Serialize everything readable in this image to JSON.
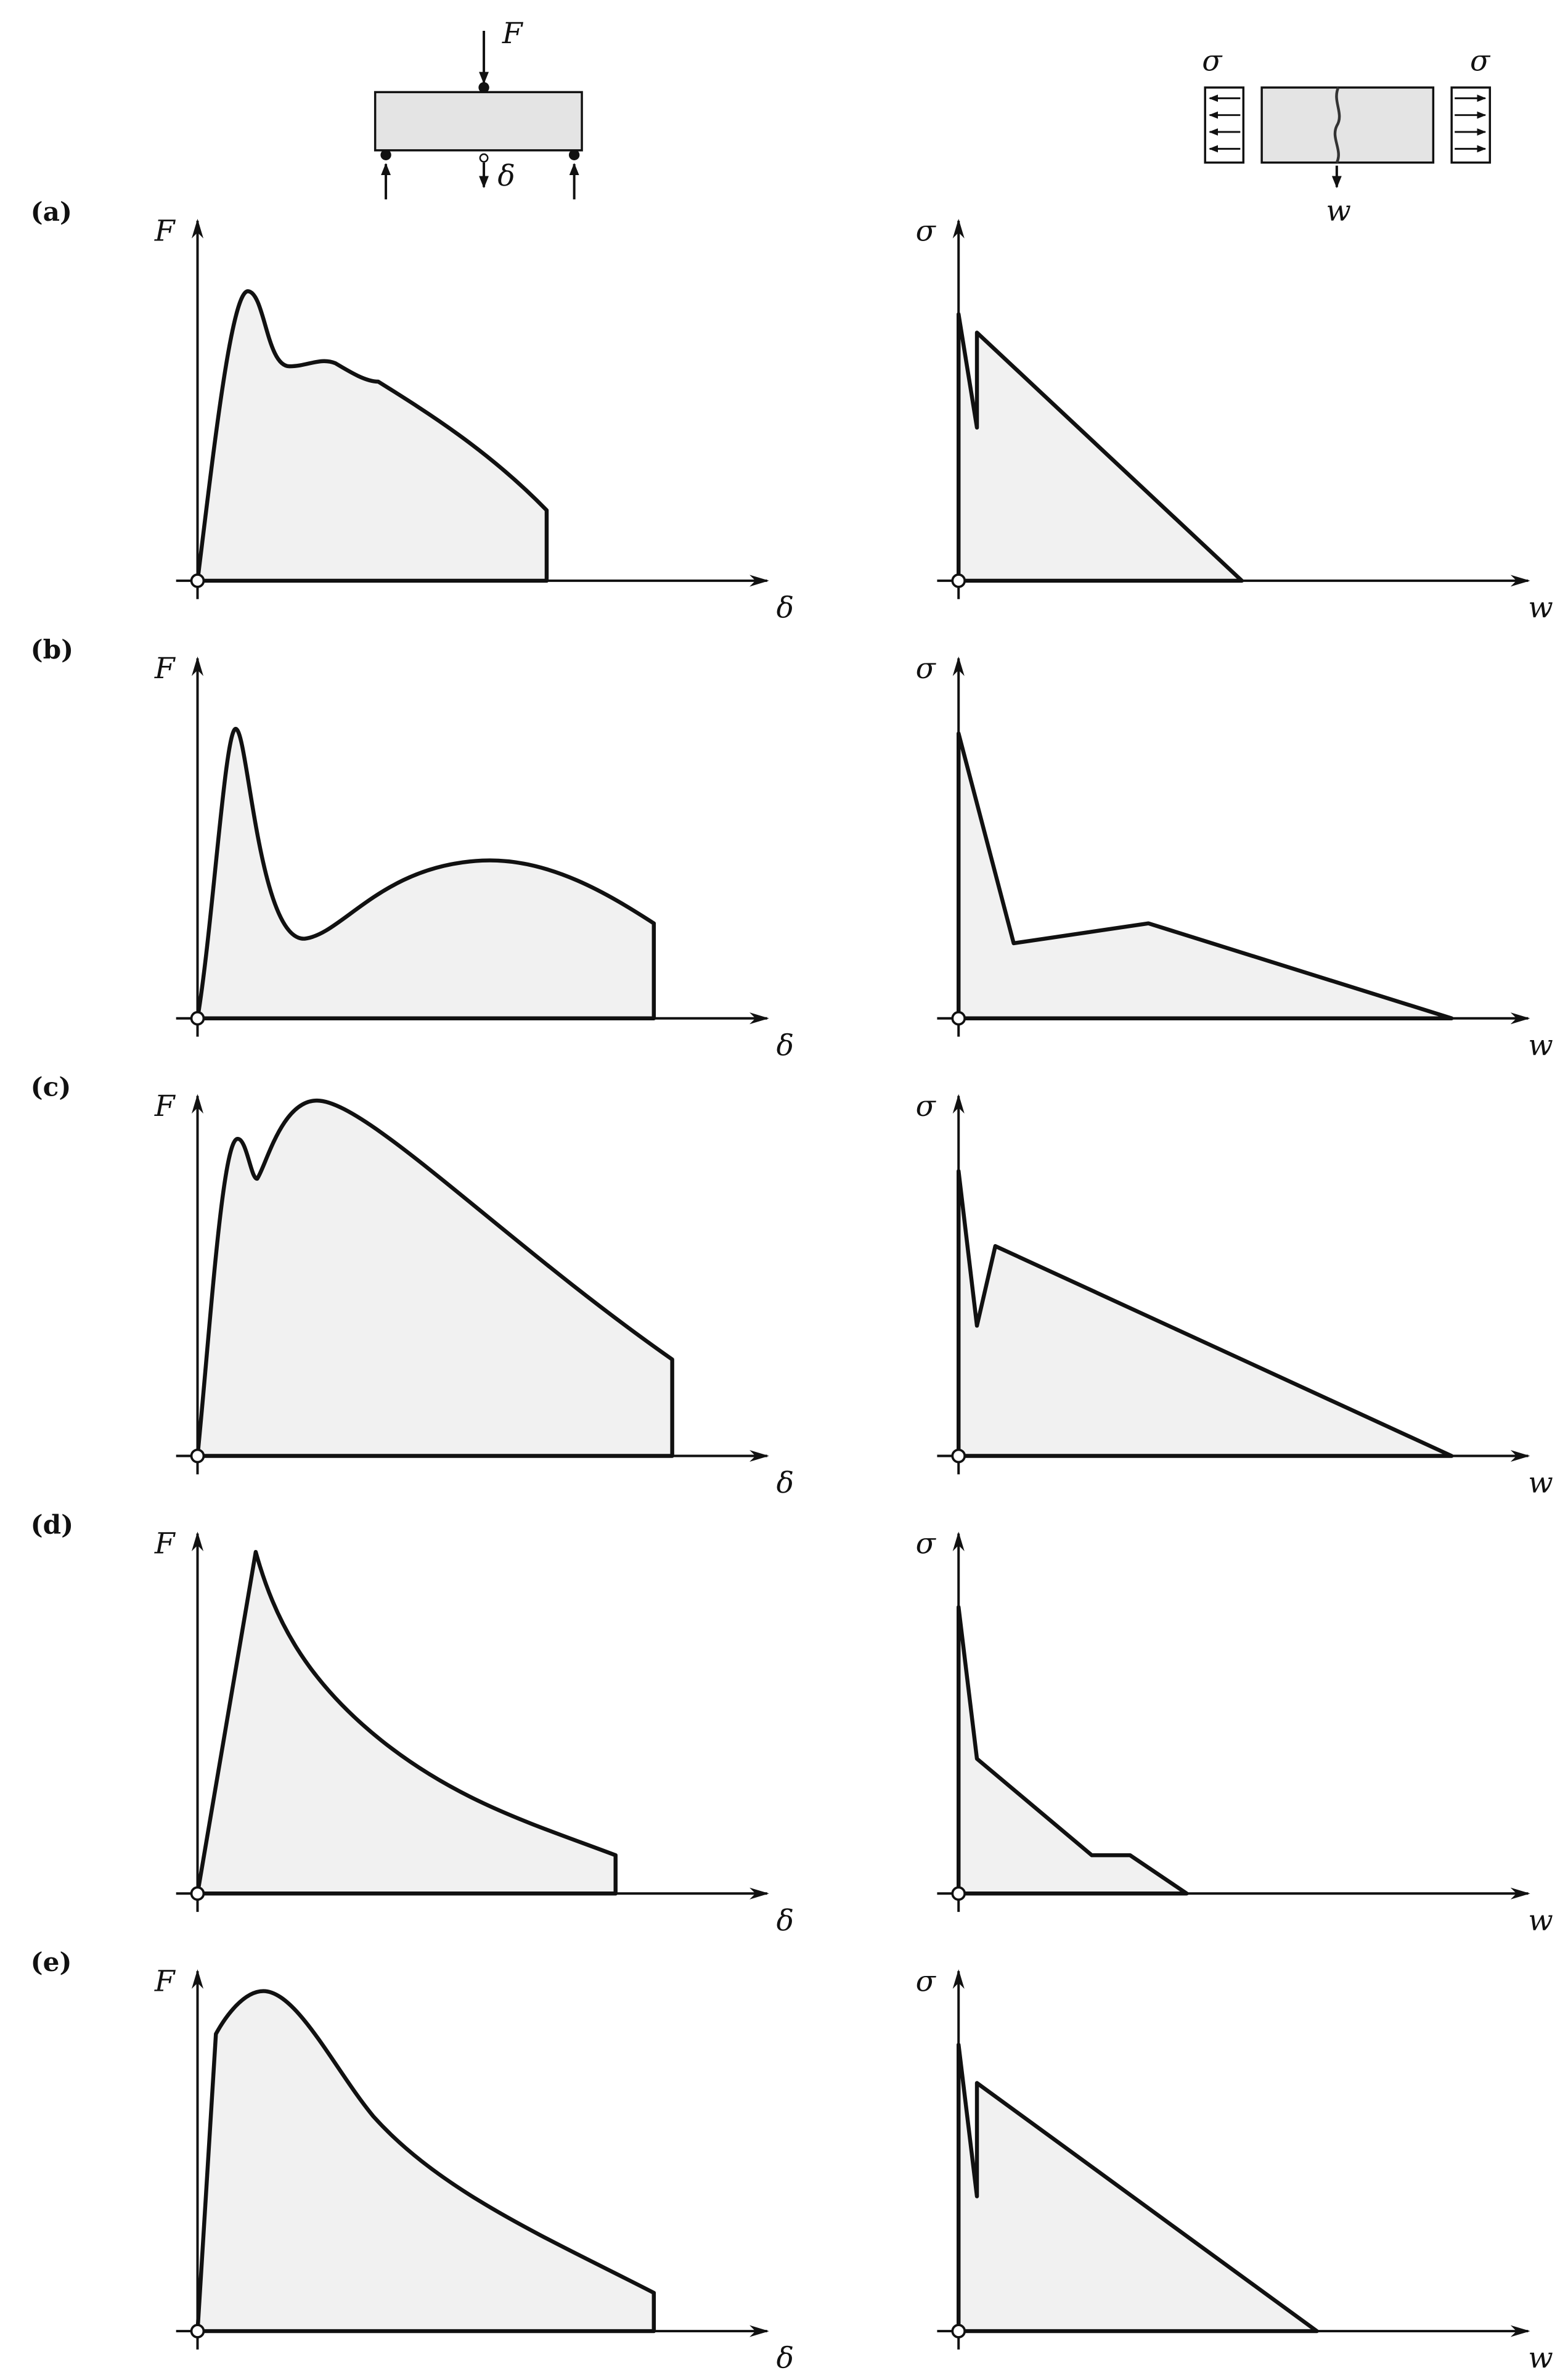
{
  "header": {
    "beam": {
      "load": "F",
      "deflection": "δ"
    },
    "specimen": {
      "stress_left": "σ",
      "stress_right": "σ",
      "opening": "w"
    }
  },
  "rows": [
    {
      "label": "(a)",
      "left": {
        "y_label": "F",
        "x_label": "δ"
      },
      "right": {
        "y_label": "σ",
        "x_label": "w"
      }
    },
    {
      "label": "(b)",
      "left": {
        "y_label": "F",
        "x_label": "δ"
      },
      "right": {
        "y_label": "σ",
        "x_label": "w"
      }
    },
    {
      "label": "(c)",
      "left": {
        "y_label": "F",
        "x_label": "δ"
      },
      "right": {
        "y_label": "σ",
        "x_label": "w"
      }
    },
    {
      "label": "(d)",
      "left": {
        "y_label": "F",
        "x_label": "δ"
      },
      "right": {
        "y_label": "σ",
        "x_label": "w"
      }
    },
    {
      "label": "(e)",
      "left": {
        "y_label": "F",
        "x_label": "δ"
      },
      "right": {
        "y_label": "σ",
        "x_label": "w"
      }
    }
  ]
}
